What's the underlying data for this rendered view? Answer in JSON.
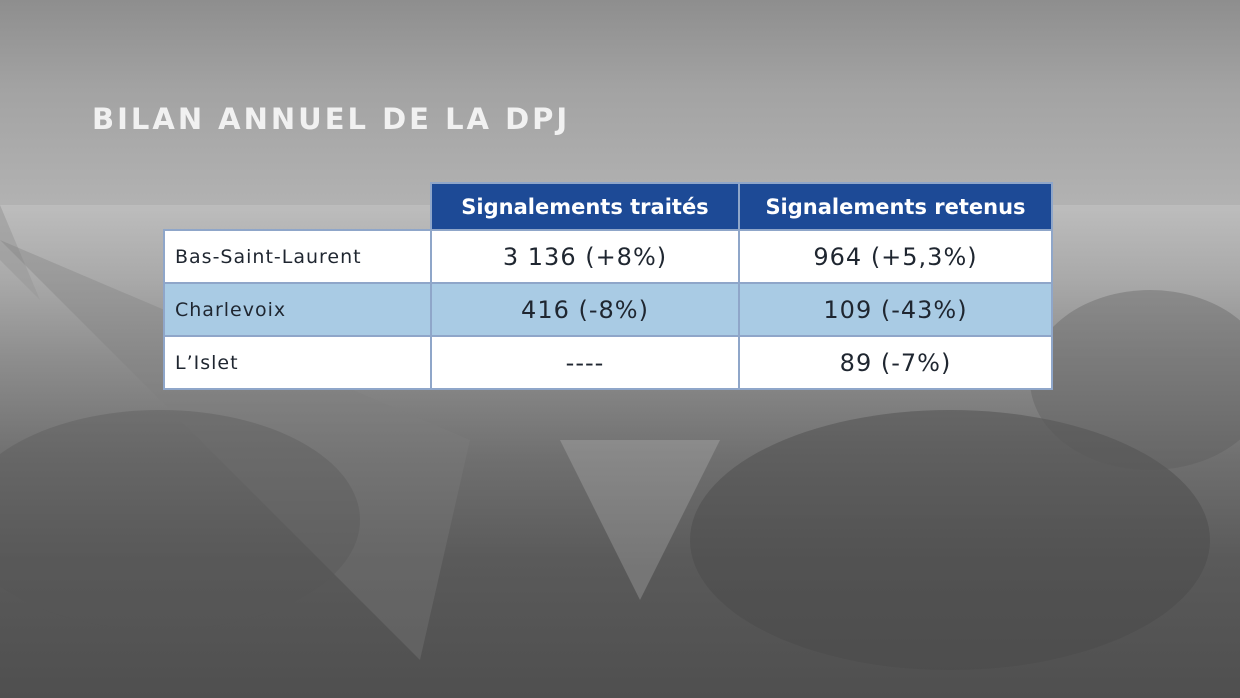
{
  "title": "BILAN ANNUEL DE LA DPJ",
  "table": {
    "columns": [
      "Signalements traités",
      "Signalements retenus"
    ],
    "rows": [
      {
        "region": "Bas-Saint-Laurent",
        "traites": "3 136 (+8%)",
        "retenus": "964 (+5,3%)"
      },
      {
        "region": "Charlevoix",
        "traites": "416 (-8%)",
        "retenus": "109 (-43%)"
      },
      {
        "region": "L’Islet",
        "traites": "----",
        "retenus": "89 (-7%)"
      }
    ]
  },
  "colors": {
    "header_bg": "#1d4a96",
    "alt_row_bg": "#a9cbe4",
    "row_bg": "#ffffff",
    "border": "#8fa6c9",
    "title": "#f1f1f1"
  }
}
